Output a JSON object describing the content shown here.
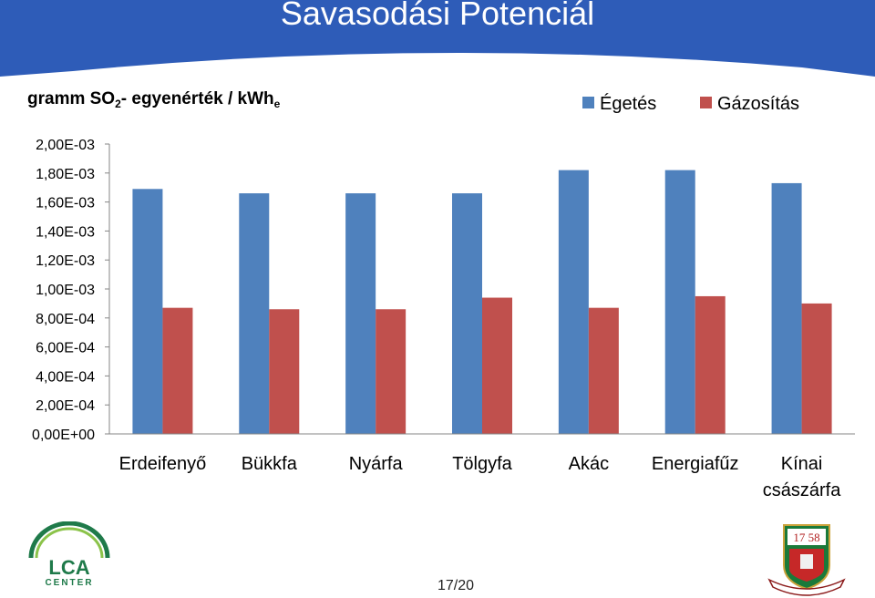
{
  "slide": {
    "title": "Savasodási Potenciál",
    "page_number": "17/20"
  },
  "colors": {
    "title_bar": "#2e5cb8",
    "egetes": "#4f81bd",
    "gazositas": "#c0504d"
  },
  "logos": {
    "left": {
      "icon": "lca-center-logo",
      "text": "LCA CENTER"
    },
    "right": {
      "icon": "university-seal-logo",
      "text": "17 58"
    }
  },
  "chart_data": {
    "type": "bar",
    "title": "",
    "ylabel": "gramm SO2- egyenérték / kWhe",
    "ylabel_parts": {
      "pre": "gramm SO",
      "sub1": "2",
      "mid": "- egyenérték / kWh",
      "sub2": "e"
    },
    "xlabel": "",
    "ylim": [
      0,
      0.002
    ],
    "yticks": [
      {
        "value": 0.0,
        "label": "0,00E+00"
      },
      {
        "value": 0.0002,
        "label": "2,00E-04"
      },
      {
        "value": 0.0004,
        "label": "4,00E-04"
      },
      {
        "value": 0.0006,
        "label": "6,00E-04"
      },
      {
        "value": 0.0008,
        "label": "8,00E-04"
      },
      {
        "value": 0.001,
        "label": "1,00E-03"
      },
      {
        "value": 0.0012,
        "label": "1,20E-03"
      },
      {
        "value": 0.0014,
        "label": "1,40E-03"
      },
      {
        "value": 0.0016,
        "label": "1,60E-03"
      },
      {
        "value": 0.0018,
        "label": "1,80E-03"
      },
      {
        "value": 0.002,
        "label": "2,00E-03"
      }
    ],
    "grid": false,
    "legend": "top-right",
    "categories": [
      "Erdeifenyő",
      "Bükkfa",
      "Nyárfa",
      "Tölgyfa",
      "Akác",
      "Energiafűz",
      "Kínai császárfa"
    ],
    "category_lines": [
      [
        "Erdeifenyő"
      ],
      [
        "Bükkfa"
      ],
      [
        "Nyárfa"
      ],
      [
        "Tölgyfa"
      ],
      [
        "Akác"
      ],
      [
        "Energiafűz"
      ],
      [
        "Kínai",
        "császárfa"
      ]
    ],
    "series": [
      {
        "name": "Égetés",
        "color": "#4f81bd",
        "values": [
          0.00169,
          0.00166,
          0.00166,
          0.00166,
          0.00182,
          0.00182,
          0.00173
        ]
      },
      {
        "name": "Gázosítás",
        "color": "#c0504d",
        "values": [
          0.00087,
          0.00086,
          0.00086,
          0.00094,
          0.00087,
          0.00095,
          0.0009
        ]
      }
    ]
  }
}
